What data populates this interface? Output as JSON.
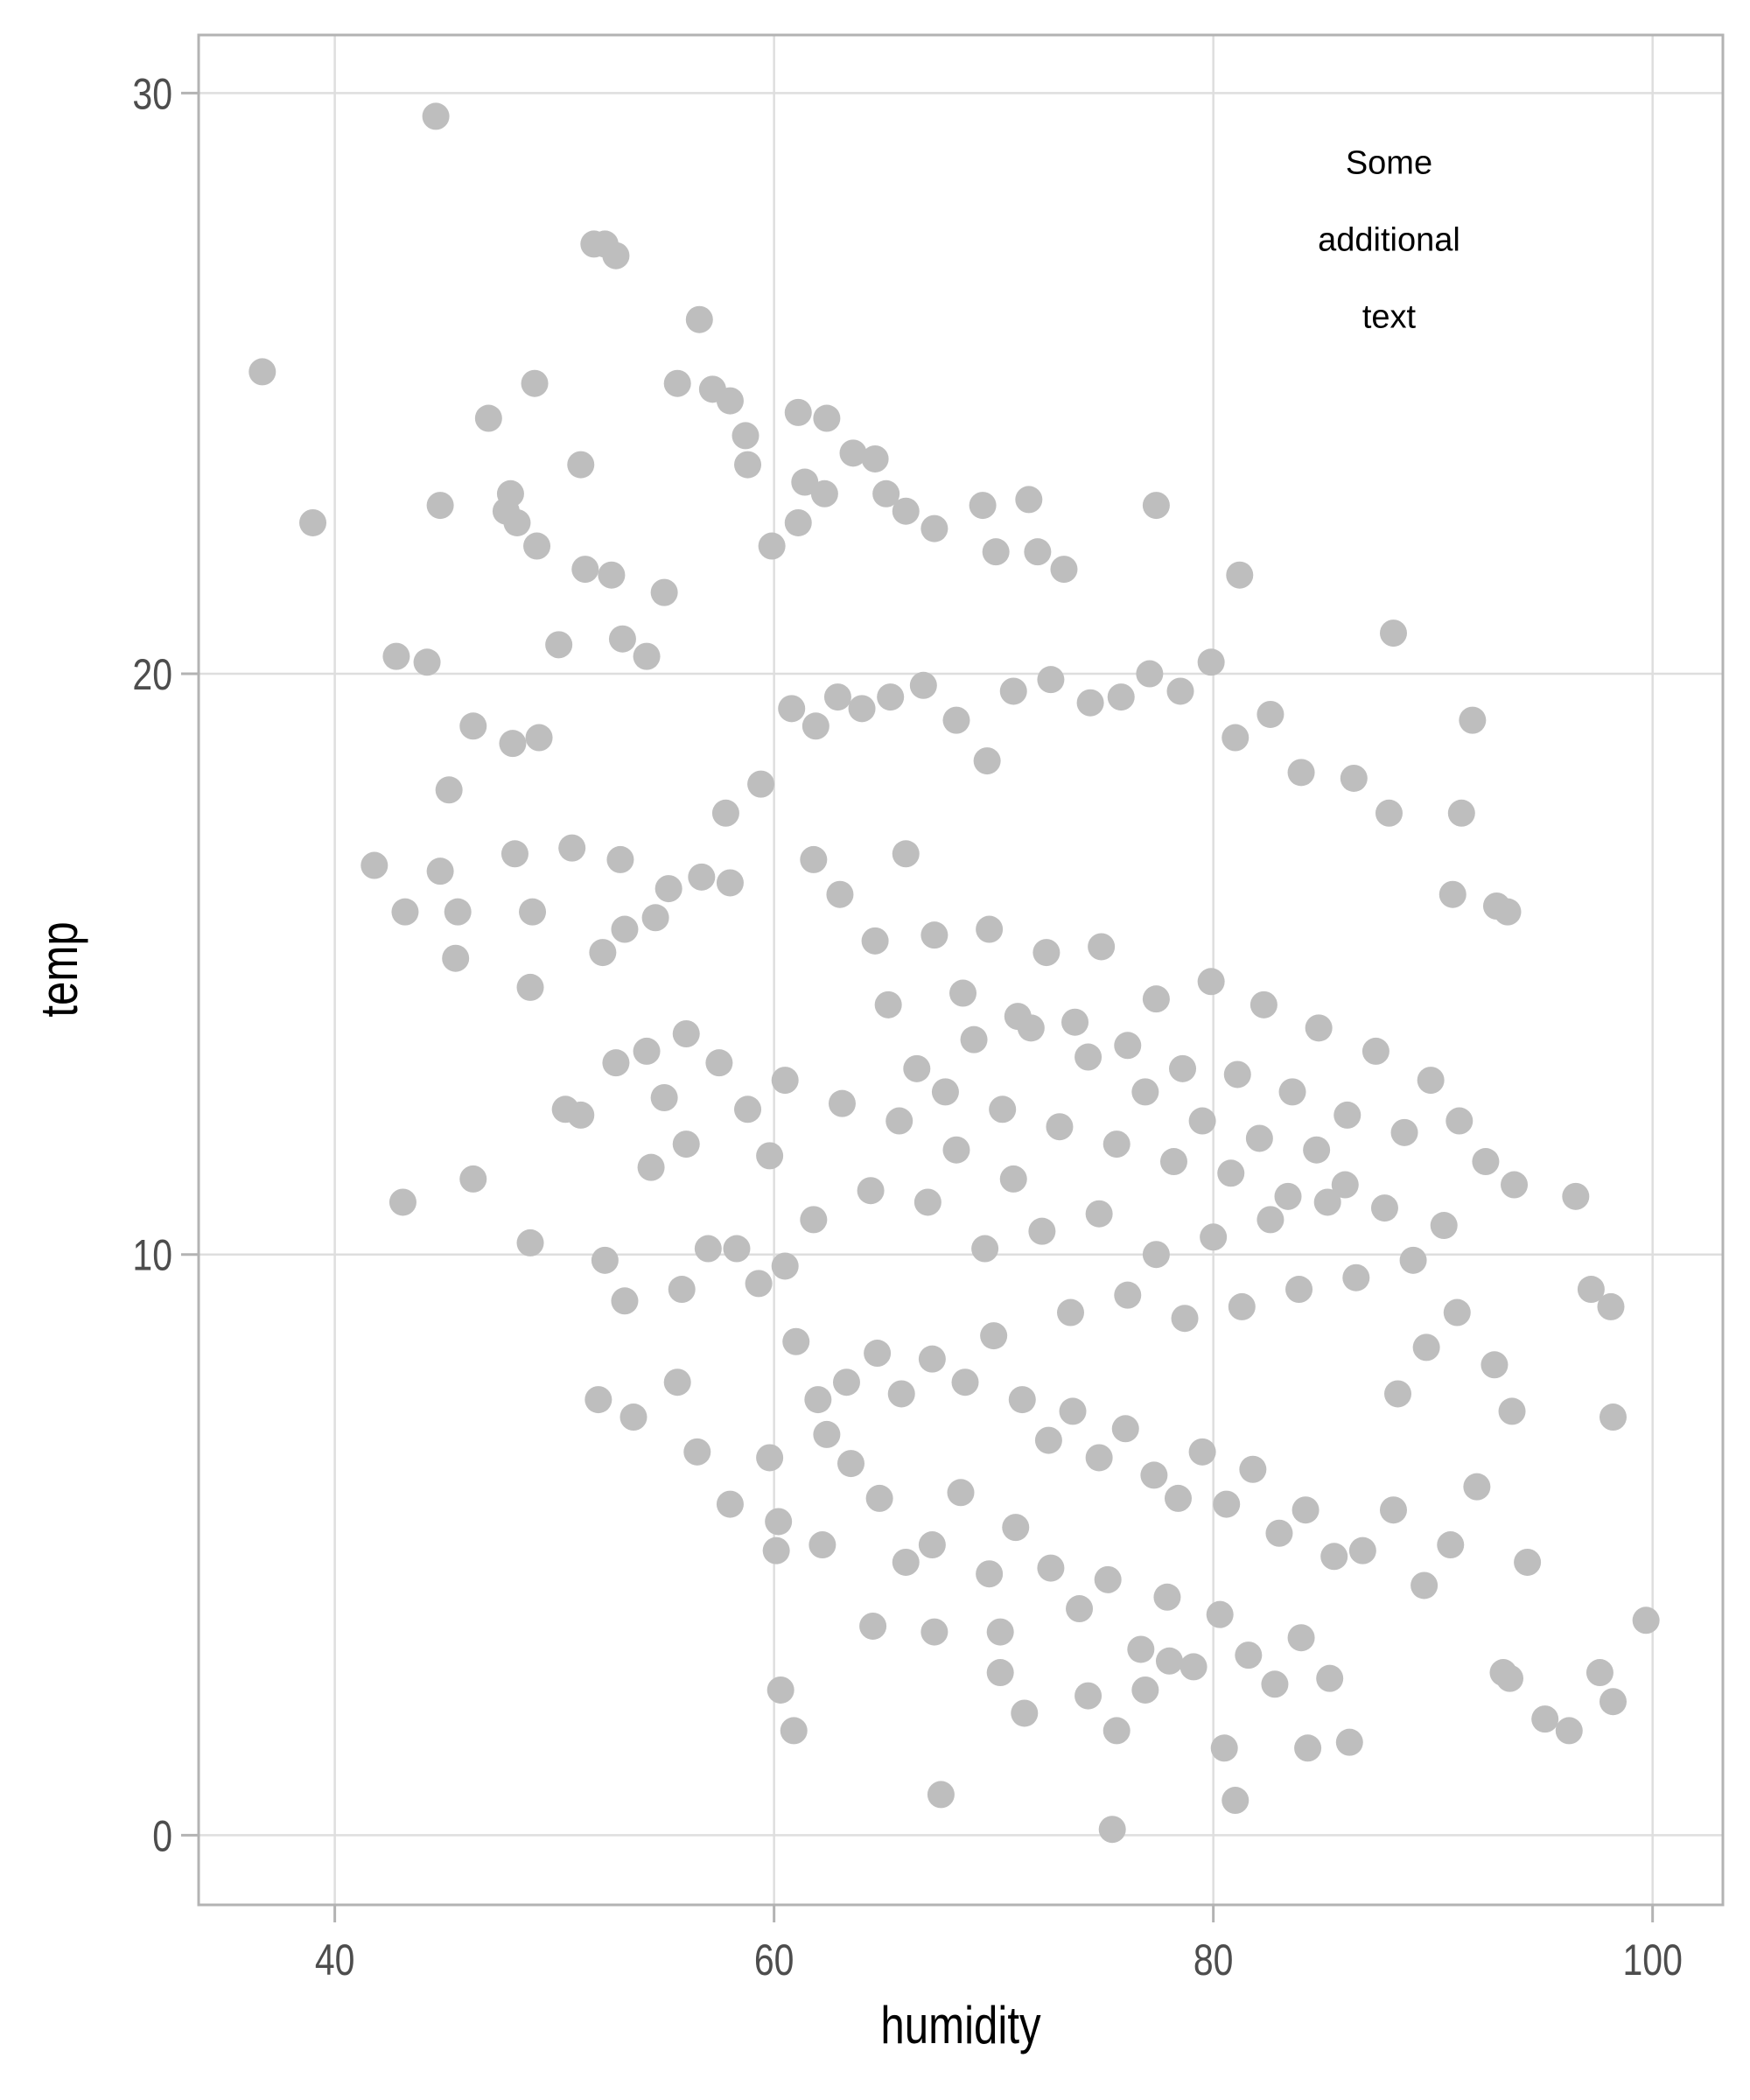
{
  "chart_data": {
    "type": "scatter",
    "title": "",
    "xlabel": "humidity",
    "ylabel": "temp",
    "xlim": [
      33.8,
      103.2
    ],
    "ylim": [
      -1.2,
      31.0
    ],
    "xticks": [
      40,
      60,
      80,
      100
    ],
    "yticks": [
      0,
      10,
      20,
      30
    ],
    "xtick_labels": [
      "40",
      "60",
      "80",
      "100"
    ],
    "ytick_labels": [
      "0",
      "10",
      "20",
      "30"
    ],
    "grid": true,
    "point_color": "#bebebe",
    "annotation": {
      "lines": [
        "Some",
        "additional",
        "text"
      ],
      "x": 88,
      "y": 27.5
    },
    "points": [
      [
        44.6,
        29.6
      ],
      [
        36.7,
        25.2
      ],
      [
        39,
        22.6
      ],
      [
        52.3,
        27.4
      ],
      [
        52.8,
        27.2
      ],
      [
        51.8,
        27.4
      ],
      [
        56.6,
        26.1
      ],
      [
        49.1,
        25.0
      ],
      [
        47,
        24.4
      ],
      [
        55.6,
        25.0
      ],
      [
        57.2,
        24.9
      ],
      [
        58,
        24.7
      ],
      [
        58.7,
        24.1
      ],
      [
        58.8,
        23.6
      ],
      [
        61.1,
        24.5
      ],
      [
        62.4,
        24.4
      ],
      [
        63.6,
        23.8
      ],
      [
        64.6,
        23.7
      ],
      [
        61.4,
        23.3
      ],
      [
        62.3,
        23.1
      ],
      [
        65.1,
        23.1
      ],
      [
        51.2,
        23.6
      ],
      [
        44.8,
        22.9
      ],
      [
        48,
        23.1
      ],
      [
        47.8,
        22.8
      ],
      [
        48.3,
        22.6
      ],
      [
        49.2,
        22.2
      ],
      [
        69.5,
        22.9
      ],
      [
        71.6,
        23.0
      ],
      [
        77.4,
        22.9
      ],
      [
        66,
        22.8
      ],
      [
        67.3,
        22.5
      ],
      [
        72,
        22.1
      ],
      [
        70.1,
        22.1
      ],
      [
        61.1,
        22.6
      ],
      [
        59.9,
        22.2
      ],
      [
        81.2,
        21.7
      ],
      [
        73.2,
        21.8
      ],
      [
        88.2,
        20.7
      ],
      [
        79.9,
        20.2
      ],
      [
        44.2,
        20.2
      ],
      [
        42.8,
        20.3
      ],
      [
        46.3,
        19.1
      ],
      [
        45.2,
        18.0
      ],
      [
        41.8,
        16.7
      ],
      [
        43.2,
        15.9
      ],
      [
        45.6,
        15.9
      ],
      [
        45.5,
        15.1
      ],
      [
        44.8,
        16.6
      ],
      [
        91.8,
        19.2
      ],
      [
        91.3,
        17.6
      ],
      [
        92.9,
        16.0
      ],
      [
        93.4,
        15.9
      ],
      [
        90.9,
        16.2
      ],
      [
        96.5,
        11.0
      ],
      [
        97.2,
        9.4
      ],
      [
        98.1,
        9.1
      ],
      [
        98.2,
        7.2
      ],
      [
        99.7,
        3.7
      ],
      [
        97.6,
        2.8
      ],
      [
        98.2,
        2.3
      ],
      [
        95.1,
        2.0
      ],
      [
        96.2,
        1.8
      ],
      [
        94.3,
        4.7
      ],
      [
        93.2,
        2.8
      ],
      [
        93.5,
        2.7
      ],
      [
        67.6,
        0.7
      ],
      [
        75.4,
        0.1
      ],
      [
        81,
        0.6
      ],
      [
        60.3,
        2.5
      ],
      [
        60.9,
        1.8
      ],
      [
        80.5,
        1.5
      ],
      [
        84.3,
        1.5
      ],
      [
        86.2,
        1.6
      ],
      [
        43.1,
        10.9
      ],
      [
        48.9,
        10.2
      ],
      [
        46.3,
        11.3
      ],
      [
        52,
        7.5
      ],
      [
        53.6,
        7.2
      ],
      [
        58,
        5.7
      ],
      [
        56.5,
        6.6
      ],
      [
        55.6,
        7.8
      ],
      [
        59.8,
        6.5
      ],
      [
        64.5,
        3.6
      ],
      [
        67.3,
        3.5
      ],
      [
        70.3,
        3.5
      ],
      [
        71.4,
        2.1
      ],
      [
        70.3,
        2.8
      ],
      [
        62.2,
        5.0
      ],
      [
        60.1,
        4.9
      ],
      [
        60.2,
        5.4
      ],
      [
        51.4,
        21.8
      ],
      [
        52.6,
        21.7
      ],
      [
        53.1,
        20.6
      ],
      [
        54.2,
        20.3
      ],
      [
        55.0,
        21.4
      ],
      [
        50.2,
        20.5
      ],
      [
        49.3,
        18.9
      ],
      [
        48.1,
        18.8
      ],
      [
        50.8,
        17.0
      ],
      [
        48.2,
        16.9
      ],
      [
        49.0,
        15.9
      ],
      [
        53.0,
        16.8
      ],
      [
        54.6,
        15.8
      ],
      [
        53.2,
        15.6
      ],
      [
        52.2,
        15.2
      ],
      [
        55.2,
        16.3
      ],
      [
        56.7,
        16.5
      ],
      [
        58.0,
        16.4
      ],
      [
        57.8,
        17.6
      ],
      [
        59.4,
        18.1
      ],
      [
        60.8,
        19.4
      ],
      [
        61.9,
        19.1
      ],
      [
        62.9,
        19.6
      ],
      [
        64.0,
        19.4
      ],
      [
        65.3,
        19.6
      ],
      [
        66.8,
        19.8
      ],
      [
        68.3,
        19.2
      ],
      [
        69.7,
        18.5
      ],
      [
        70.9,
        19.7
      ],
      [
        72.6,
        19.9
      ],
      [
        74.4,
        19.5
      ],
      [
        75.8,
        19.6
      ],
      [
        77.1,
        20.0
      ],
      [
        78.5,
        19.7
      ],
      [
        81.0,
        18.9
      ],
      [
        82.6,
        19.3
      ],
      [
        84.0,
        18.3
      ],
      [
        86.4,
        18.2
      ],
      [
        88.0,
        17.6
      ],
      [
        48.9,
        14.6
      ],
      [
        50.5,
        12.5
      ],
      [
        51.2,
        12.4
      ],
      [
        52.8,
        13.3
      ],
      [
        54.2,
        13.5
      ],
      [
        55.0,
        12.7
      ],
      [
        56.0,
        13.8
      ],
      [
        57.5,
        13.3
      ],
      [
        58.8,
        12.5
      ],
      [
        59.8,
        11.7
      ],
      [
        56.0,
        11.9
      ],
      [
        54.4,
        11.5
      ],
      [
        52.3,
        9.9
      ],
      [
        53.2,
        9.2
      ],
      [
        55.8,
        9.4
      ],
      [
        57.0,
        10.1
      ],
      [
        58.3,
        10.1
      ],
      [
        59.3,
        9.5
      ],
      [
        60.5,
        9.8
      ],
      [
        61.0,
        8.5
      ],
      [
        62.0,
        7.5
      ],
      [
        63.3,
        7.8
      ],
      [
        64.7,
        8.3
      ],
      [
        65.8,
        7.6
      ],
      [
        67.2,
        8.2
      ],
      [
        68.7,
        7.8
      ],
      [
        70.0,
        8.6
      ],
      [
        71.3,
        7.5
      ],
      [
        72.5,
        6.8
      ],
      [
        73.6,
        7.3
      ],
      [
        74.8,
        6.5
      ],
      [
        76.0,
        7.0
      ],
      [
        77.3,
        6.2
      ],
      [
        78.4,
        5.8
      ],
      [
        79.5,
        6.6
      ],
      [
        80.6,
        5.7
      ],
      [
        81.8,
        6.3
      ],
      [
        83.0,
        5.2
      ],
      [
        84.2,
        5.6
      ],
      [
        85.5,
        4.8
      ],
      [
        86.8,
        4.9
      ],
      [
        88.2,
        5.6
      ],
      [
        89.6,
        4.3
      ],
      [
        90.8,
        5.0
      ],
      [
        92.0,
        6.0
      ],
      [
        93.6,
        7.3
      ],
      [
        92.8,
        8.1
      ],
      [
        91.1,
        9.0
      ],
      [
        89.7,
        8.4
      ],
      [
        88.4,
        7.6
      ],
      [
        61.8,
        16.8
      ],
      [
        63.0,
        16.2
      ],
      [
        64.6,
        15.4
      ],
      [
        66.0,
        16.9
      ],
      [
        67.3,
        15.5
      ],
      [
        68.6,
        14.5
      ],
      [
        69.8,
        15.6
      ],
      [
        71.1,
        14.1
      ],
      [
        72.4,
        15.2
      ],
      [
        73.7,
        14.0
      ],
      [
        74.9,
        15.3
      ],
      [
        76.1,
        13.6
      ],
      [
        77.4,
        14.4
      ],
      [
        78.6,
        13.2
      ],
      [
        79.9,
        14.7
      ],
      [
        81.1,
        13.1
      ],
      [
        82.3,
        14.3
      ],
      [
        83.6,
        12.8
      ],
      [
        84.8,
        13.9
      ],
      [
        86.1,
        12.4
      ],
      [
        87.4,
        13.5
      ],
      [
        88.7,
        12.1
      ],
      [
        89.9,
        13.0
      ],
      [
        91.2,
        12.3
      ],
      [
        92.4,
        11.6
      ],
      [
        93.7,
        11.2
      ],
      [
        90.5,
        10.5
      ],
      [
        89.1,
        9.9
      ],
      [
        87.8,
        10.8
      ],
      [
        86.5,
        9.6
      ],
      [
        85.2,
        10.9
      ],
      [
        83.9,
        9.4
      ],
      [
        82.6,
        10.6
      ],
      [
        81.3,
        9.1
      ],
      [
        80.0,
        10.3
      ],
      [
        78.7,
        8.9
      ],
      [
        77.4,
        10.0
      ],
      [
        76.1,
        9.3
      ],
      [
        74.8,
        10.7
      ],
      [
        73.5,
        9.0
      ],
      [
        72.2,
        10.4
      ],
      [
        70.9,
        11.3
      ],
      [
        69.6,
        10.1
      ],
      [
        68.3,
        11.8
      ],
      [
        67.0,
        10.9
      ],
      [
        65.7,
        12.3
      ],
      [
        64.4,
        11.1
      ],
      [
        63.1,
        12.6
      ],
      [
        61.8,
        10.6
      ],
      [
        60.5,
        13.0
      ],
      [
        65.2,
        14.3
      ],
      [
        66.5,
        13.2
      ],
      [
        67.8,
        12.8
      ],
      [
        69.1,
        13.7
      ],
      [
        70.4,
        12.5
      ],
      [
        71.7,
        13.9
      ],
      [
        73.0,
        12.2
      ],
      [
        74.3,
        13.4
      ],
      [
        75.6,
        11.9
      ],
      [
        76.9,
        12.8
      ],
      [
        78.2,
        11.6
      ],
      [
        79.5,
        12.3
      ],
      [
        80.8,
        11.4
      ],
      [
        82.1,
        12.0
      ],
      [
        83.4,
        11.0
      ],
      [
        84.7,
        11.8
      ],
      [
        86.0,
        11.2
      ],
      [
        75.2,
        4.4
      ],
      [
        73.9,
        3.9
      ],
      [
        72.6,
        4.6
      ],
      [
        76.7,
        3.2
      ],
      [
        77.9,
        4.1
      ],
      [
        79.1,
        2.9
      ],
      [
        80.3,
        3.8
      ],
      [
        81.6,
        3.1
      ],
      [
        82.8,
        2.6
      ],
      [
        84.0,
        3.4
      ],
      [
        85.3,
        2.7
      ],
      [
        74.3,
        2.4
      ],
      [
        75.6,
        1.8
      ],
      [
        76.9,
        2.5
      ],
      [
        78.0,
        3.0
      ],
      [
        71.0,
        5.3
      ],
      [
        69.8,
        4.5
      ],
      [
        68.5,
        5.9
      ],
      [
        67.2,
        5.0
      ],
      [
        66.0,
        4.7
      ],
      [
        64.8,
        5.8
      ],
      [
        63.5,
        6.4
      ],
      [
        62.4,
        6.9
      ]
    ]
  }
}
